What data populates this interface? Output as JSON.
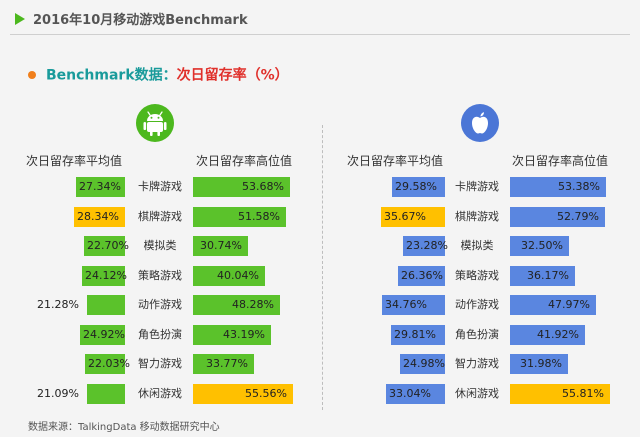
{
  "header": {
    "title": "2016年10月移动游戏Benchmark"
  },
  "subheader": {
    "part_a": "Benchmark数据：",
    "part_b": "次日留存率（%）"
  },
  "footer": {
    "source": "数据来源：TalkingData 移动数据研究中心"
  },
  "colors": {
    "android_bar": "#5bc22b",
    "ios_bar": "#5a86e0",
    "highlight_bar": "#ffc000",
    "android_icon": "#4cb81e",
    "ios_icon": "#4b76d6",
    "accent_dot": "#f07f1b"
  },
  "chart_data": [
    {
      "type": "bar",
      "platform_icon": "android-icon",
      "categories": [
        "卡牌游戏",
        "棋牌游戏",
        "模拟类",
        "策略游戏",
        "动作游戏",
        "角色扮演",
        "智力游戏",
        "休闲游戏"
      ],
      "series": [
        {
          "name": "次日留存率平均值",
          "values": [
            27.34,
            28.34,
            22.7,
            24.12,
            21.28,
            24.92,
            22.03,
            21.09
          ],
          "labels": [
            "27.34%",
            "28.34%",
            "22.70%",
            "24.12%",
            "21.28%",
            "24.92%",
            "22.03%",
            "21.09%"
          ],
          "highlight": [
            1
          ],
          "labels_outside": [
            4,
            7
          ]
        },
        {
          "name": "次日留存率高位值",
          "values": [
            53.68,
            51.58,
            30.74,
            40.04,
            48.28,
            43.19,
            33.77,
            55.56
          ],
          "labels": [
            "53.68%",
            "51.58%",
            "30.74%",
            "40.04%",
            "48.28%",
            "43.19%",
            "33.77%",
            "55.56%"
          ],
          "highlight": [
            7
          ],
          "labels_outside": []
        }
      ]
    },
    {
      "type": "bar",
      "platform_icon": "apple-icon",
      "categories": [
        "卡牌游戏",
        "棋牌游戏",
        "模拟类",
        "策略游戏",
        "动作游戏",
        "角色扮演",
        "智力游戏",
        "休闲游戏"
      ],
      "series": [
        {
          "name": "次日留存率平均值",
          "values": [
            29.58,
            35.67,
            23.28,
            26.36,
            34.76,
            29.81,
            24.98,
            33.04
          ],
          "labels": [
            "29.58%",
            "35.67%",
            "23.28%",
            "26.36%",
            "34.76%",
            "29.81%",
            "24.98%",
            "33.04%"
          ],
          "highlight": [
            1
          ],
          "labels_outside": []
        },
        {
          "name": "次日留存率高位值",
          "values": [
            53.38,
            52.79,
            32.5,
            36.17,
            47.97,
            41.92,
            31.98,
            55.81
          ],
          "labels": [
            "53.38%",
            "52.79%",
            "32.50%",
            "36.17%",
            "47.97%",
            "41.92%",
            "31.98%",
            "55.81%"
          ],
          "highlight": [
            7
          ],
          "labels_outside": []
        }
      ]
    }
  ]
}
